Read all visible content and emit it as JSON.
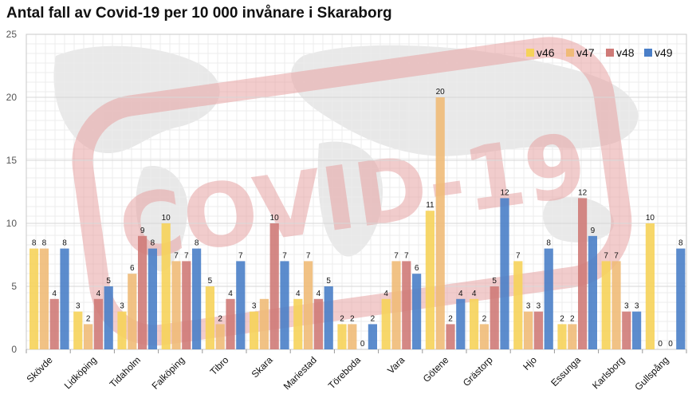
{
  "colors": {
    "v46": "#f6d35a",
    "v47": "#f0bb78",
    "v48": "#cf7b78",
    "v49": "#4a7fc8",
    "grid": "#d7d7d7",
    "watermark": "#e7a3a3",
    "map": "#e1e1e1"
  },
  "watermark": {
    "text": "COVID-19"
  },
  "chart_data": {
    "type": "bar",
    "title": "Antal fall av Covid-19 per 10 000 invånare i Skaraborg",
    "xlabel": "",
    "ylabel": "",
    "ylim": [
      0,
      25
    ],
    "yticks": [
      0,
      5,
      10,
      15,
      20,
      25
    ],
    "grid": true,
    "legend_position": "top-right",
    "categories": [
      "Skövde",
      "Lidköping",
      "Tidaholm",
      "Falköping",
      "Tibro",
      "Skara",
      "Mariestad",
      "Töreboda",
      "Vara",
      "Götene",
      "Grästorp",
      "Hjo",
      "Essunga",
      "Karlsborg",
      "Gullspång"
    ],
    "series": [
      {
        "name": "v46",
        "values": [
          8,
          3,
          3,
          10,
          5,
          3,
          4,
          2,
          4,
          11,
          4,
          7,
          2,
          7,
          10
        ]
      },
      {
        "name": "v47",
        "values": [
          8,
          2,
          6,
          7,
          2,
          4,
          7,
          2,
          7,
          20,
          2,
          3,
          2,
          7,
          0
        ]
      },
      {
        "name": "v48",
        "values": [
          4,
          4,
          9,
          7,
          4,
          10,
          4,
          0,
          7,
          2,
          5,
          3,
          12,
          3,
          0
        ]
      },
      {
        "name": "v49",
        "values": [
          8,
          5,
          8,
          8,
          7,
          7,
          5,
          2,
          6,
          4,
          12,
          8,
          9,
          3,
          8
        ]
      }
    ],
    "data_labels": [
      [
        "8",
        "3",
        "3",
        "10",
        "5",
        "3",
        "4",
        "2",
        "4",
        "11",
        "4",
        "7",
        "2",
        "7",
        "10"
      ],
      [
        "8",
        "2",
        "6",
        "7",
        "2",
        "",
        "7",
        "2",
        "7",
        "20",
        "2",
        "3",
        "2",
        "7",
        "0"
      ],
      [
        "4",
        "4",
        "9",
        "7",
        "4",
        "10",
        "4",
        "0",
        "7",
        "2",
        "5",
        "3",
        "12",
        "3",
        "0"
      ],
      [
        "8",
        "5",
        "8",
        "8",
        "7",
        "7",
        "5",
        "2",
        "6",
        "4",
        "12",
        "8",
        "9",
        "3",
        "8"
      ]
    ]
  }
}
